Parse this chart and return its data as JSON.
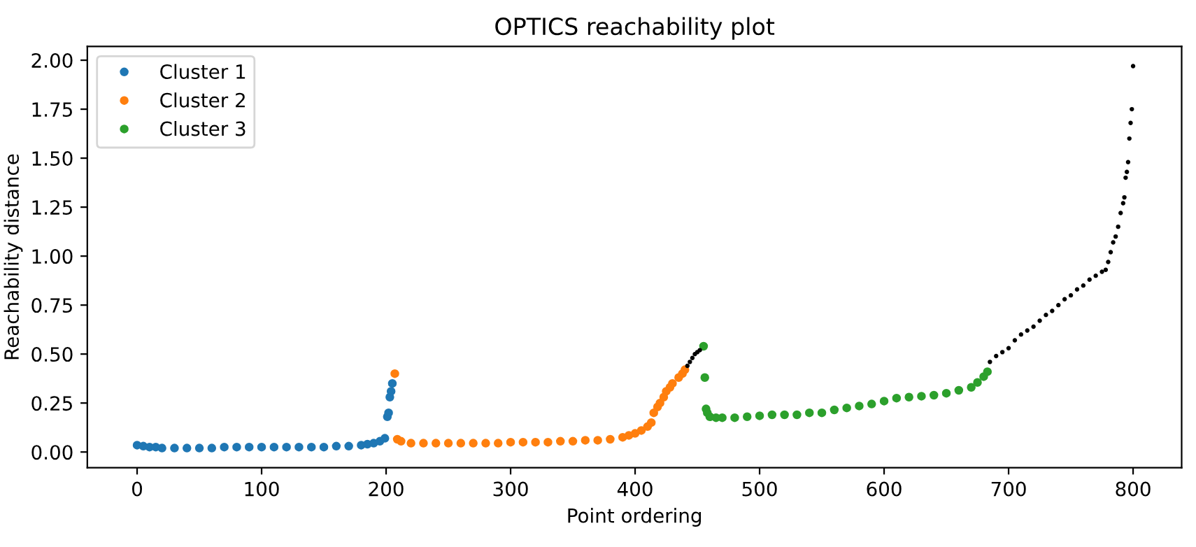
{
  "chart_data": {
    "type": "scatter",
    "title": "OPTICS reachability plot",
    "xlabel": "Point ordering",
    "ylabel": "Reachability distance",
    "xlim": [
      -40,
      839
    ],
    "ylim": [
      -0.08,
      2.07
    ],
    "xticks": [
      0,
      100,
      200,
      300,
      400,
      500,
      600,
      700,
      800
    ],
    "yticks": [
      {
        "value": 0,
        "label": "0.00"
      },
      {
        "value": 0.25,
        "label": "0.25"
      },
      {
        "value": 0.5,
        "label": "0.50"
      },
      {
        "value": 0.75,
        "label": "0.75"
      },
      {
        "value": 1.0,
        "label": "1.00"
      },
      {
        "value": 1.25,
        "label": "1.25"
      },
      {
        "value": 1.5,
        "label": "1.50"
      },
      {
        "value": 1.75,
        "label": "1.75"
      },
      {
        "value": 2.0,
        "label": "2.00"
      }
    ],
    "grid": false,
    "legend": "top left",
    "marker": "circle",
    "series": [
      {
        "name": "Cluster 1",
        "color": "#1f77b4",
        "x": [
          0,
          5,
          10,
          15,
          20,
          30,
          40,
          50,
          60,
          70,
          80,
          90,
          100,
          110,
          120,
          130,
          140,
          150,
          160,
          170,
          180,
          185,
          190,
          195,
          199,
          201,
          202,
          203,
          204,
          205
        ],
        "values": [
          0.035,
          0.03,
          0.025,
          0.025,
          0.02,
          0.02,
          0.02,
          0.02,
          0.02,
          0.025,
          0.025,
          0.025,
          0.025,
          0.025,
          0.025,
          0.025,
          0.025,
          0.025,
          0.03,
          0.03,
          0.035,
          0.04,
          0.045,
          0.055,
          0.07,
          0.18,
          0.2,
          0.28,
          0.31,
          0.35
        ]
      },
      {
        "name": "Cluster 2",
        "color": "#ff7f0e",
        "x": [
          207,
          209,
          212,
          220,
          230,
          240,
          250,
          260,
          270,
          280,
          290,
          300,
          310,
          320,
          330,
          340,
          350,
          360,
          370,
          380,
          390,
          395,
          400,
          405,
          410,
          413,
          415,
          418,
          420,
          423,
          425,
          428,
          430,
          435,
          438,
          440
        ],
        "values": [
          0.4,
          0.065,
          0.055,
          0.045,
          0.045,
          0.045,
          0.045,
          0.045,
          0.045,
          0.045,
          0.045,
          0.05,
          0.05,
          0.05,
          0.05,
          0.055,
          0.055,
          0.06,
          0.06,
          0.065,
          0.075,
          0.085,
          0.095,
          0.11,
          0.13,
          0.15,
          0.2,
          0.23,
          0.25,
          0.28,
          0.31,
          0.33,
          0.35,
          0.38,
          0.4,
          0.42
        ]
      },
      {
        "name": "Cluster 3",
        "color": "#2ca02c",
        "x": [
          455,
          456,
          457,
          458,
          460,
          465,
          470,
          480,
          490,
          500,
          510,
          520,
          530,
          540,
          550,
          560,
          570,
          580,
          590,
          600,
          610,
          620,
          630,
          640,
          650,
          660,
          670,
          675,
          680,
          683
        ],
        "values": [
          0.54,
          0.38,
          0.22,
          0.2,
          0.18,
          0.175,
          0.175,
          0.175,
          0.18,
          0.185,
          0.19,
          0.19,
          0.19,
          0.2,
          0.2,
          0.215,
          0.225,
          0.235,
          0.245,
          0.26,
          0.275,
          0.28,
          0.285,
          0.29,
          0.3,
          0.315,
          0.33,
          0.355,
          0.385,
          0.41
        ]
      },
      {
        "color": "#000000",
        "x": [
          442,
          444,
          446,
          448,
          450,
          452,
          685,
          690,
          695,
          700,
          705,
          710,
          715,
          720,
          725,
          730,
          735,
          740,
          745,
          750,
          755,
          760,
          765,
          770,
          775,
          778,
          780,
          782,
          784,
          786,
          788,
          790,
          792,
          793,
          794,
          795,
          796,
          797,
          798,
          799,
          800
        ],
        "values": [
          0.44,
          0.46,
          0.48,
          0.5,
          0.51,
          0.52,
          0.46,
          0.49,
          0.51,
          0.53,
          0.57,
          0.6,
          0.62,
          0.64,
          0.67,
          0.7,
          0.72,
          0.75,
          0.78,
          0.8,
          0.83,
          0.85,
          0.88,
          0.9,
          0.92,
          0.93,
          0.97,
          1.02,
          1.07,
          1.1,
          1.15,
          1.22,
          1.27,
          1.3,
          1.4,
          1.43,
          1.48,
          1.6,
          1.68,
          1.75,
          1.97
        ]
      }
    ]
  }
}
